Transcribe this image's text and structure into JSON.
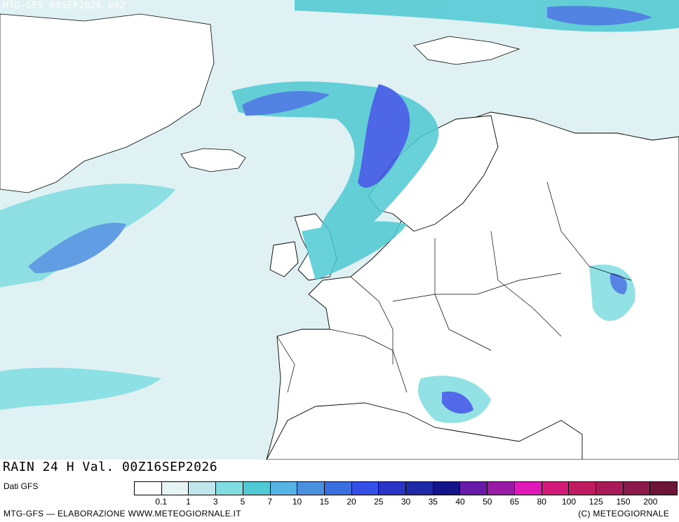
{
  "header": {
    "run": "MTG-GFS 09SEP2026 00Z"
  },
  "footer": {
    "title": "RAIN 24 H Val. 00Z16SEP2026",
    "source": "Dati GFS",
    "credit_left": "MTG-GFS — ELABORAZIONE WWW.METEOGIORNALE.IT",
    "credit_right": "(C) METEOGIORNALE"
  },
  "legend": {
    "colors": [
      "#ffffff",
      "#e6f4f6",
      "#bfe6ea",
      "#7fdde1",
      "#4fc9d3",
      "#56b3e6",
      "#4a8fe0",
      "#3a6fe0",
      "#3450e6",
      "#2a35c8",
      "#1e2aa8",
      "#14148a",
      "#6a1aa8",
      "#9a1aa8",
      "#e01ab8",
      "#d41a78",
      "#c01a60",
      "#a81a58",
      "#8c1a4a",
      "#6e1438"
    ],
    "labels": [
      "0.1",
      "1",
      "3",
      "5",
      "7",
      "10",
      "15",
      "20",
      "25",
      "30",
      "35",
      "40",
      "50",
      "65",
      "80",
      "100",
      "125",
      "150",
      "200"
    ]
  },
  "colors": {
    "land": "#ffffff",
    "sea_base": "#dff1f3",
    "coast": "#000000"
  }
}
